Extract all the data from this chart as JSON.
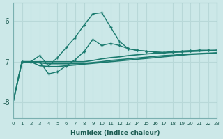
{
  "xlabel": "Humidex (Indice chaleur)",
  "background_color": "#cce8e8",
  "grid_color": "#b8d8d8",
  "line_color": "#1a7a6e",
  "xlim": [
    0,
    23
  ],
  "ylim": [
    -8.4,
    -5.55
  ],
  "yticks": [
    -8,
    -7,
    -6
  ],
  "xticks": [
    0,
    1,
    2,
    3,
    4,
    5,
    6,
    7,
    8,
    9,
    10,
    11,
    12,
    13,
    14,
    15,
    16,
    17,
    18,
    19,
    20,
    21,
    22,
    23
  ],
  "lines": [
    {
      "x": [
        0,
        1,
        2,
        3,
        4,
        5,
        6,
        7,
        8,
        9,
        10,
        11,
        12,
        13,
        14,
        15,
        16,
        17,
        18,
        19,
        20,
        21,
        22,
        23
      ],
      "y": [
        -8.0,
        -7.0,
        -7.0,
        -7.0,
        -7.0,
        -7.0,
        -7.0,
        -7.0,
        -7.0,
        -6.97,
        -6.93,
        -6.9,
        -6.88,
        -6.85,
        -6.83,
        -6.81,
        -6.79,
        -6.78,
        -6.77,
        -6.76,
        -6.75,
        -6.74,
        -6.73,
        -6.72
      ],
      "marker": null,
      "linewidth": 1.2
    },
    {
      "x": [
        0,
        1,
        2,
        3,
        4,
        5,
        6,
        7,
        8,
        9,
        10,
        11,
        12,
        13,
        14,
        15,
        16,
        17,
        18,
        19,
        20,
        21,
        22,
        23
      ],
      "y": [
        -8.0,
        -7.0,
        -7.0,
        -7.03,
        -7.05,
        -7.05,
        -7.05,
        -7.05,
        -7.04,
        -7.02,
        -7.0,
        -6.97,
        -6.95,
        -6.93,
        -6.91,
        -6.89,
        -6.87,
        -6.85,
        -6.84,
        -6.82,
        -6.81,
        -6.8,
        -6.79,
        -6.78
      ],
      "marker": null,
      "linewidth": 1.2
    },
    {
      "x": [
        0,
        1,
        2,
        3,
        4,
        5,
        6,
        7,
        8,
        9,
        10,
        11,
        12,
        13,
        14,
        15,
        16,
        17,
        18,
        19,
        20,
        21,
        22,
        23
      ],
      "y": [
        -8.0,
        -7.0,
        -7.0,
        -7.1,
        -7.12,
        -7.12,
        -7.1,
        -7.08,
        -7.06,
        -7.04,
        -7.02,
        -7.0,
        -6.98,
        -6.96,
        -6.94,
        -6.92,
        -6.9,
        -6.88,
        -6.86,
        -6.84,
        -6.82,
        -6.81,
        -6.8,
        -6.79
      ],
      "marker": null,
      "linewidth": 1.2
    },
    {
      "x": [
        1,
        2,
        3,
        4,
        5,
        6,
        7,
        8,
        9,
        10,
        11,
        12,
        13,
        14,
        15,
        16,
        17,
        18,
        19,
        20,
        21,
        22,
        23
      ],
      "y": [
        -7.0,
        -7.0,
        -7.0,
        -7.3,
        -7.25,
        -7.1,
        -6.95,
        -6.75,
        -6.45,
        -6.6,
        -6.55,
        -6.6,
        -6.68,
        -6.72,
        -6.74,
        -6.76,
        -6.77,
        -6.75,
        -6.74,
        -6.73,
        -6.72,
        -6.72,
        -6.72
      ],
      "marker": "+",
      "linewidth": 1.0
    },
    {
      "x": [
        1,
        2,
        3,
        4,
        5,
        6,
        7,
        8,
        9,
        10,
        11,
        12,
        13,
        14,
        15,
        16,
        17,
        18,
        19,
        20,
        21,
        22,
        23
      ],
      "y": [
        -7.0,
        -7.0,
        -6.85,
        -7.1,
        -6.9,
        -6.65,
        -6.4,
        -6.1,
        -5.82,
        -5.79,
        -6.15,
        -6.5,
        -6.68,
        -6.72,
        -6.74,
        -6.76,
        -6.78,
        -6.76,
        -6.74,
        -6.73,
        -6.72,
        -6.72,
        -6.72
      ],
      "marker": "+",
      "linewidth": 1.0
    }
  ]
}
